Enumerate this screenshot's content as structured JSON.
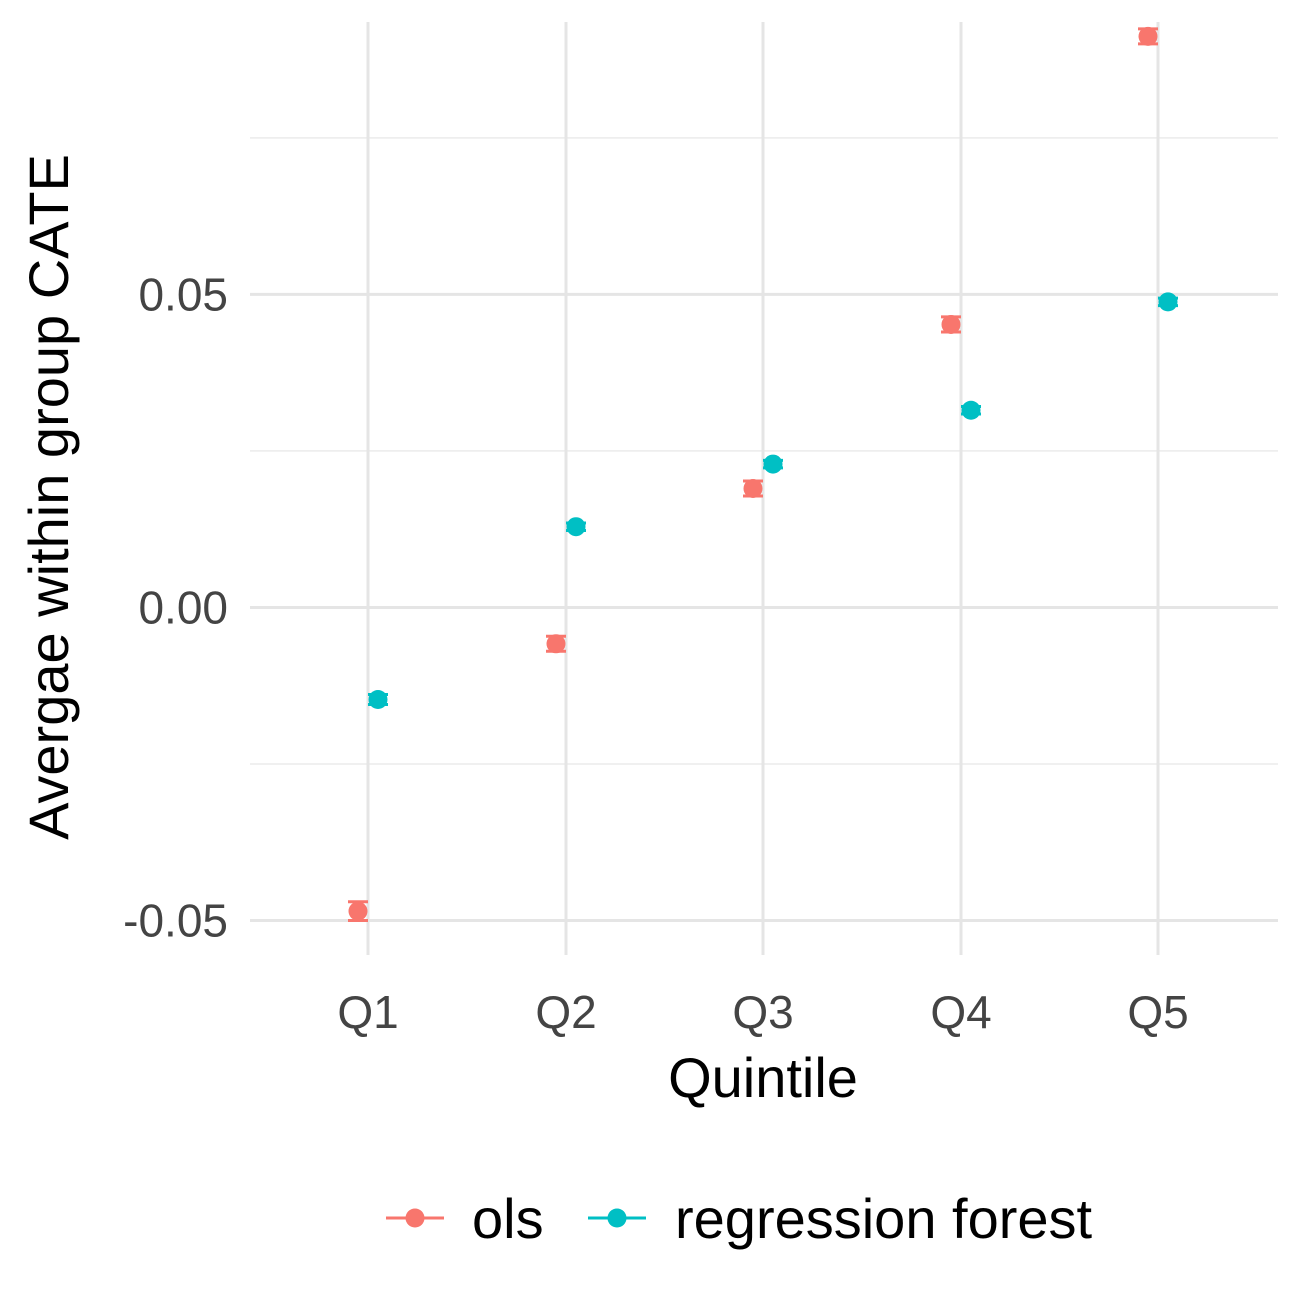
{
  "chart_data": {
    "type": "scatter",
    "title": "",
    "xlabel": "Quintile",
    "ylabel": "Avergae within group CATE",
    "categories": [
      "Q1",
      "Q2",
      "Q3",
      "Q4",
      "Q5"
    ],
    "yticks": [
      "-0.05",
      "0.00",
      "0.05"
    ],
    "ytick_values": [
      -0.05,
      0.0,
      0.05
    ],
    "ylim": [
      -0.0555,
      0.0935
    ],
    "grid": true,
    "legend_position": "bottom",
    "series": [
      {
        "name": "ols",
        "color": "#F8766D",
        "values": [
          -0.0485,
          -0.0058,
          0.019,
          0.0452,
          0.0912
        ],
        "error": [
          0.0015,
          0.0012,
          0.0012,
          0.0012,
          0.0012
        ]
      },
      {
        "name": "regression forest",
        "color": "#00BFC4",
        "values": [
          -0.0147,
          0.0129,
          0.0229,
          0.0315,
          0.0488
        ],
        "error": [
          0.0008,
          0.0006,
          0.0006,
          0.0006,
          0.0006
        ]
      }
    ]
  }
}
